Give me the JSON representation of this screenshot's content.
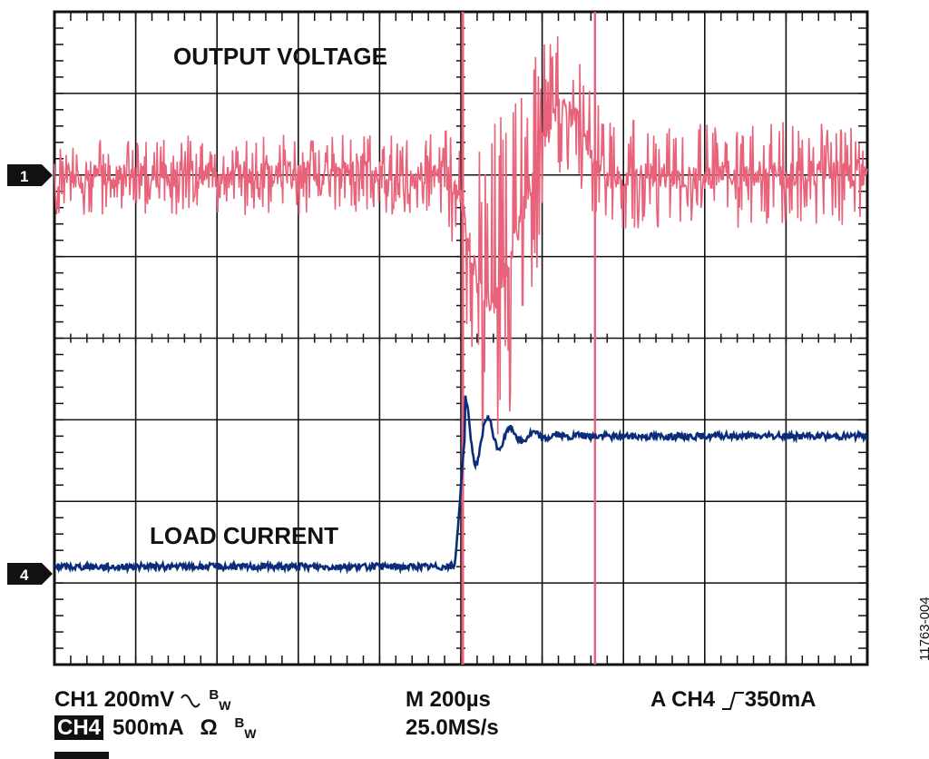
{
  "chart_data": {
    "type": "line",
    "title": "",
    "xlabel": "",
    "ylabel": "",
    "x_divisions": 10,
    "y_divisions": 8,
    "x_range_us": [
      -1000,
      1000
    ],
    "timebase_per_div": "M 200µs",
    "sample_rate": "25.0MS/s",
    "trigger": "A  CH4",
    "trigger_level": "350mA",
    "grid": true,
    "trace_labels": {
      "output_voltage": "OUTPUT VOLTAGE",
      "load_current": "LOAD CURRENT"
    },
    "channel_markers": [
      "1",
      "4"
    ],
    "series": [
      {
        "name": "CH1",
        "label": "OUTPUT VOLTAGE",
        "color": "#e8627a",
        "scale_per_div": "CH1 200mV",
        "coupling_icon": "ac-coupling-icon",
        "offset_div": 2.0,
        "noise_envelope_div": [
          [
            0,
            0.5
          ],
          [
            100,
            0.5
          ],
          [
            200,
            0.5
          ],
          [
            300,
            0.5
          ],
          [
            400,
            0.5
          ],
          [
            450,
            0.5
          ],
          [
            480,
            0.55
          ],
          [
            500,
            1.1
          ],
          [
            520,
            1.6
          ],
          [
            540,
            2.2
          ],
          [
            560,
            2.0
          ],
          [
            600,
            1.2
          ],
          [
            650,
            0.8
          ],
          [
            700,
            0.7
          ],
          [
            800,
            0.65
          ],
          [
            900,
            0.65
          ],
          [
            1000,
            0.65
          ]
        ],
        "trend_div": [
          [
            0,
            0
          ],
          [
            480,
            0
          ],
          [
            500,
            -0.3
          ],
          [
            520,
            -1.3
          ],
          [
            540,
            -1.6
          ],
          [
            560,
            -1.0
          ],
          [
            580,
            -0.3
          ],
          [
            600,
            0.4
          ],
          [
            620,
            0.8
          ],
          [
            640,
            0.7
          ],
          [
            660,
            0.3
          ],
          [
            680,
            0
          ],
          [
            1000,
            0
          ]
        ]
      },
      {
        "name": "CH4",
        "label": "LOAD CURRENT",
        "color": "#0a2d7a",
        "scale_per_div": "500mA",
        "scale_icon": "ohm-icon",
        "offset_div": -2.8,
        "step_time_us": 0,
        "level_before_div": 0,
        "level_after_div": 1.6,
        "overshoot_div": 0.5,
        "noise_div": 0.04
      }
    ]
  },
  "readout": {
    "ch1_scale": "CH1 200mV",
    "ch4_badge": "CH4",
    "ch4_scale": "500mA",
    "ohm_symbol": "Ω",
    "bw_b": "B",
    "bw_w": "W",
    "timebase": "M 200µs",
    "sample_rate": "25.0MS/s",
    "trigger_source": "A  CH4",
    "trigger_level": "350mA"
  },
  "figure_id": "11763-004",
  "colors": {
    "ch1": "#e8627a",
    "ch4": "#0a2d7a",
    "grid": "#111111",
    "marker_bg": "#111111",
    "background": "#ffffff"
  }
}
